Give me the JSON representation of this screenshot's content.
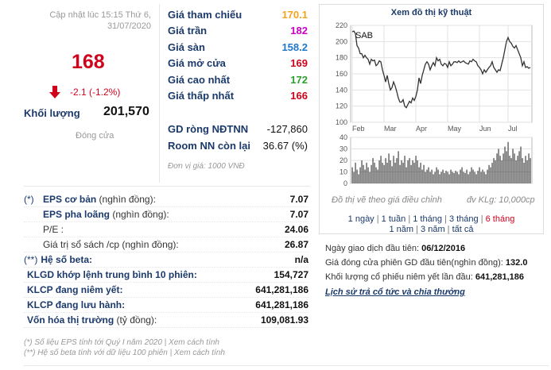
{
  "left_panel": {
    "updated": "Cập nhật lúc 15:15 Thứ 6, 31/07/2020",
    "price": "168",
    "change": "-2.1 (-1.2%)",
    "volume_label": "Khối lượng",
    "volume_value": "201,570",
    "status": "Đóng cửa"
  },
  "price_table": [
    {
      "label": "Giá tham chiếu",
      "value": "170.1",
      "color": "#f7a21b"
    },
    {
      "label": "Giá trần",
      "value": "182",
      "color": "#c800c8"
    },
    {
      "label": "Giá sàn",
      "value": "158.2",
      "color": "#1f78c8"
    },
    {
      "label": "Giá mở cửa",
      "value": "169",
      "color": "#d0021b"
    },
    {
      "label": "Giá cao nhất",
      "value": "172",
      "color": "#2ca02c"
    },
    {
      "label": "Giá thấp nhất",
      "value": "166",
      "color": "#d0021b"
    }
  ],
  "foreign_table": [
    {
      "label": "GD ròng NĐTNN",
      "value": "-127,860"
    },
    {
      "label": "Room NN còn lại",
      "value": "36.67 (%)"
    }
  ],
  "unit_note": "Đơn vị giá: 1000 VNĐ",
  "chart": {
    "title": "Xem đồ thị kỹ thuật",
    "note": "Đồ thị vẽ theo giá điều chỉnh",
    "vol_unit": "đv KLg: 10,000cp",
    "ranges_line1": [
      {
        "label": "1 ngày",
        "active": false
      },
      {
        "label": "1 tuần",
        "active": false
      },
      {
        "label": "1 tháng",
        "active": false
      },
      {
        "label": "3 tháng",
        "active": false
      },
      {
        "label": "6 tháng",
        "active": true
      }
    ],
    "ranges_line2": [
      {
        "label": "1 năm",
        "active": false
      },
      {
        "label": "3 năm",
        "active": false
      },
      {
        "label": "tất cả",
        "active": false
      }
    ]
  },
  "chart_data": {
    "type": "line",
    "series_label": "SAB",
    "price_ticks": [
      "220",
      "200",
      "180",
      "160",
      "140",
      "120",
      "100"
    ],
    "volume_ticks": [
      "40",
      "30",
      "20",
      "10",
      "0"
    ],
    "x_ticks": [
      "Feb",
      "Mar",
      "Apr",
      "May",
      "Jun",
      "Jul"
    ],
    "price_range": [
      100,
      220
    ],
    "volume_range": [
      0,
      40
    ],
    "price": [
      212,
      213,
      210,
      195,
      192,
      185,
      185,
      180,
      183,
      180,
      178,
      172,
      178,
      176,
      177,
      170,
      172,
      176,
      175,
      165,
      158,
      150,
      158,
      148,
      140,
      143,
      150,
      145,
      138,
      130,
      125,
      125,
      128,
      120,
      118,
      122,
      126,
      124,
      130,
      127,
      132,
      140,
      155,
      148,
      158,
      165,
      172,
      175,
      172,
      165,
      170,
      174,
      170,
      180,
      176,
      178,
      172,
      170,
      173,
      172,
      168,
      175,
      170,
      172,
      175,
      175,
      174,
      176,
      174,
      175,
      176,
      174,
      173,
      172,
      176,
      175,
      178,
      176,
      175,
      170,
      168,
      165,
      160,
      165,
      162,
      165,
      168,
      170,
      175,
      168,
      165,
      162,
      165,
      164,
      172,
      180,
      190,
      200,
      205,
      200,
      198,
      194,
      192,
      195,
      190,
      185,
      180,
      170,
      175,
      168,
      169,
      167,
      168
    ],
    "volume": [
      14,
      10,
      18,
      12,
      8,
      14,
      20,
      16,
      12,
      18,
      14,
      10,
      16,
      22,
      18,
      14,
      12,
      20,
      24,
      18,
      16,
      22,
      18,
      26,
      20,
      15,
      24,
      18,
      22,
      28,
      16,
      20,
      18,
      24,
      14,
      20,
      22,
      16,
      20,
      18,
      24,
      20,
      14,
      18,
      12,
      16,
      10,
      12,
      14,
      10,
      12,
      8,
      10,
      14,
      12,
      8,
      10,
      12,
      9,
      11,
      10,
      8,
      12,
      10,
      9,
      11,
      10,
      8,
      12,
      14,
      10,
      9,
      12,
      8,
      10,
      14,
      12,
      10,
      8,
      11,
      14,
      10,
      12,
      10,
      8,
      12,
      16,
      14,
      18,
      22,
      20,
      26,
      30,
      24,
      20,
      26,
      32,
      28,
      36,
      24,
      22,
      30,
      26,
      20,
      24,
      28,
      32,
      22,
      18,
      24,
      20,
      26,
      22
    ]
  },
  "fundamentals": [
    {
      "pre": "(*)",
      "pre_wide": false,
      "bold": "EPS cơ bản",
      "sub": " (nghìn đồng):",
      "value": "7.07"
    },
    {
      "pre": "",
      "pre_wide": false,
      "bold": "EPS pha loãng",
      "sub": " (nghìn đồng):",
      "value": "7.07"
    },
    {
      "pre": "",
      "pre_wide": false,
      "bold": "",
      "sub": "P/E :",
      "value": "24.06"
    },
    {
      "pre": "",
      "pre_wide": false,
      "bold": "",
      "sub": "Giá trị sổ sách /cp (nghìn đồng):",
      "value": "26.87"
    },
    {
      "pre": "(**)",
      "pre_wide": true,
      "bold": "Hệ số beta:",
      "sub": "",
      "value": "n/a"
    },
    {
      "pre": "",
      "pre_wide": true,
      "bold": "KLGD khớp lệnh trung bình 10 phiên:",
      "sub": "",
      "value": "154,727"
    },
    {
      "pre": "",
      "pre_wide": true,
      "bold": "KLCP đang niêm yết:",
      "sub": "",
      "value": "641,281,186"
    },
    {
      "pre": "",
      "pre_wide": true,
      "bold": "KLCP đang lưu hành:",
      "sub": "",
      "value": "641,281,186"
    },
    {
      "pre": "",
      "pre_wide": true,
      "bold": "Vốn hóa thị trường",
      "sub": " (tỷ đồng):",
      "value": "109,081.93"
    }
  ],
  "footnotes": [
    "(*) Số liệu EPS tính tới Quý I năm 2020 | Xem cách tính",
    "(**) Hệ số beta tính với dữ liệu 100 phiên | Xem cách tính"
  ],
  "listing_info": [
    {
      "label": "Ngày giao dịch đầu tiên: ",
      "value": "06/12/2016"
    },
    {
      "label": "Giá đóng cửa phiên GD đầu tiên(nghìn đồng): ",
      "value": "132.0"
    },
    {
      "label": "Khối lượng cổ phiếu niêm yết lần đầu: ",
      "value": "641,281,186"
    }
  ],
  "history_link": "Lịch sử trả cổ tức và chia thưởng"
}
